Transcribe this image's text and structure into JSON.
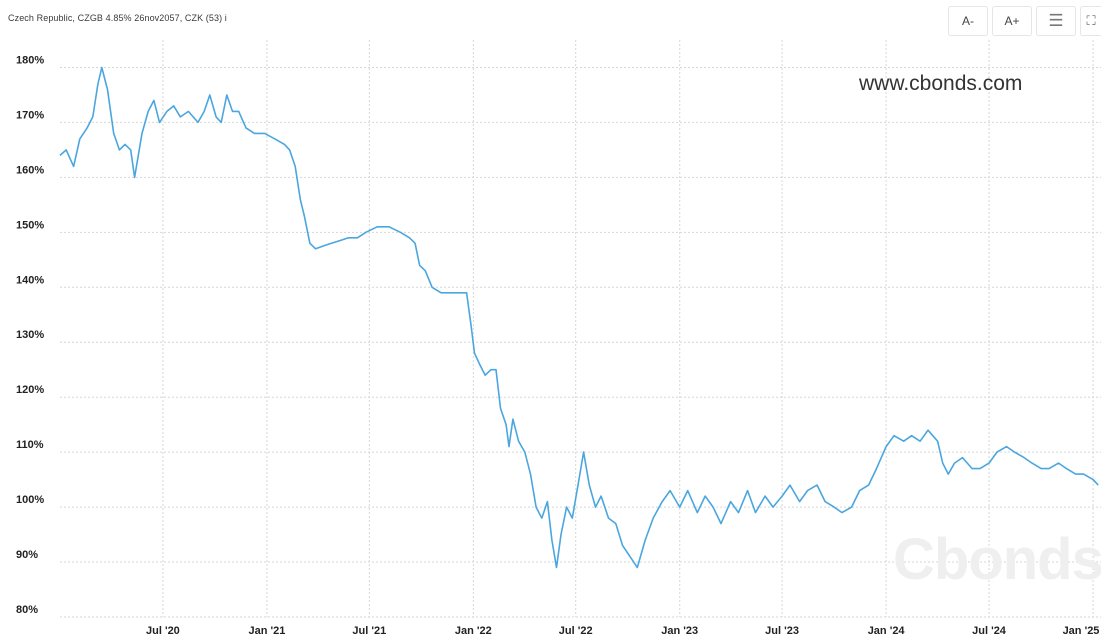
{
  "header": {
    "title": "Czech Republic, CZGB 4.85% 26nov2057, CZK (53) i",
    "toolbar": {
      "decrease_font_label": "A-",
      "increase_font_label": "A+",
      "menu_icon": "hamburger-menu-icon",
      "fullscreen_icon": "fullscreen-icon"
    }
  },
  "watermark": {
    "url_text": "www.cbonds.com",
    "logo_text": "Cbonds"
  },
  "chart_data": {
    "type": "line",
    "title": "Czech Republic, CZGB 4.85% 26nov2057, CZK (53) i",
    "xlabel": "",
    "ylabel": "",
    "ylim": [
      80,
      185
    ],
    "xlim": [
      "2020-01-01",
      "2025-01-15"
    ],
    "yticks": [
      "80%",
      "90%",
      "100%",
      "110%",
      "120%",
      "130%",
      "140%",
      "150%",
      "160%",
      "170%",
      "180%"
    ],
    "xticks": [
      {
        "date": "2020-07-01",
        "label": "Jul '20"
      },
      {
        "date": "2021-01-01",
        "label": "Jan '21"
      },
      {
        "date": "2021-07-01",
        "label": "Jul '21"
      },
      {
        "date": "2022-01-01",
        "label": "Jan '22"
      },
      {
        "date": "2022-07-01",
        "label": "Jul '22"
      },
      {
        "date": "2023-01-01",
        "label": "Jan '23"
      },
      {
        "date": "2023-07-01",
        "label": "Jul '23"
      },
      {
        "date": "2024-01-01",
        "label": "Jan '24"
      },
      {
        "date": "2024-07-01",
        "label": "Jul '24"
      },
      {
        "date": "2025-01-01",
        "label": "Jan '25"
      }
    ],
    "grid": true,
    "line_color": "#4aa6df",
    "series": [
      {
        "points": [
          [
            "2020-01-01",
            164
          ],
          [
            "2020-01-12",
            165
          ],
          [
            "2020-01-25",
            162
          ],
          [
            "2020-02-05",
            167
          ],
          [
            "2020-02-18",
            169
          ],
          [
            "2020-02-28",
            171
          ],
          [
            "2020-03-08",
            177
          ],
          [
            "2020-03-15",
            180
          ],
          [
            "2020-03-25",
            176
          ],
          [
            "2020-04-05",
            168
          ],
          [
            "2020-04-15",
            165
          ],
          [
            "2020-04-25",
            166
          ],
          [
            "2020-05-05",
            165
          ],
          [
            "2020-05-12",
            160
          ],
          [
            "2020-05-25",
            168
          ],
          [
            "2020-06-05",
            172
          ],
          [
            "2020-06-15",
            174
          ],
          [
            "2020-06-25",
            170
          ],
          [
            "2020-07-08",
            172
          ],
          [
            "2020-07-20",
            173
          ],
          [
            "2020-08-01",
            171
          ],
          [
            "2020-08-15",
            172
          ],
          [
            "2020-09-01",
            170
          ],
          [
            "2020-09-12",
            172
          ],
          [
            "2020-09-22",
            175
          ],
          [
            "2020-10-03",
            171
          ],
          [
            "2020-10-12",
            170
          ],
          [
            "2020-10-22",
            175
          ],
          [
            "2020-11-01",
            172
          ],
          [
            "2020-11-12",
            172
          ],
          [
            "2020-11-25",
            169
          ],
          [
            "2020-12-10",
            168
          ],
          [
            "2020-12-28",
            168
          ],
          [
            "2021-01-15",
            167
          ],
          [
            "2021-02-01",
            166
          ],
          [
            "2021-02-10",
            165
          ],
          [
            "2021-02-20",
            162
          ],
          [
            "2021-03-01",
            156
          ],
          [
            "2021-03-08",
            153
          ],
          [
            "2021-03-18",
            148
          ],
          [
            "2021-03-28",
            147
          ],
          [
            "2021-04-10",
            147.5
          ],
          [
            "2021-04-25",
            148
          ],
          [
            "2021-05-10",
            148.5
          ],
          [
            "2021-05-25",
            149
          ],
          [
            "2021-06-10",
            149
          ],
          [
            "2021-06-25",
            150
          ],
          [
            "2021-07-15",
            151
          ],
          [
            "2021-08-05",
            151
          ],
          [
            "2021-08-25",
            150
          ],
          [
            "2021-09-10",
            149
          ],
          [
            "2021-09-20",
            148
          ],
          [
            "2021-09-28",
            144
          ],
          [
            "2021-10-08",
            143
          ],
          [
            "2021-10-20",
            140
          ],
          [
            "2021-11-05",
            139
          ],
          [
            "2021-11-20",
            139
          ],
          [
            "2021-12-05",
            139
          ],
          [
            "2021-12-20",
            139
          ],
          [
            "2021-12-28",
            133
          ],
          [
            "2022-01-03",
            128
          ],
          [
            "2022-01-12",
            126
          ],
          [
            "2022-01-22",
            124
          ],
          [
            "2022-02-01",
            125
          ],
          [
            "2022-02-10",
            125
          ],
          [
            "2022-02-18",
            118
          ],
          [
            "2022-02-28",
            115
          ],
          [
            "2022-03-05",
            111
          ],
          [
            "2022-03-12",
            116
          ],
          [
            "2022-03-22",
            112
          ],
          [
            "2022-04-02",
            110
          ],
          [
            "2022-04-12",
            106
          ],
          [
            "2022-04-22",
            100
          ],
          [
            "2022-05-02",
            98
          ],
          [
            "2022-05-12",
            101
          ],
          [
            "2022-05-20",
            94
          ],
          [
            "2022-05-28",
            89
          ],
          [
            "2022-06-05",
            95
          ],
          [
            "2022-06-15",
            100
          ],
          [
            "2022-06-25",
            98
          ],
          [
            "2022-07-05",
            104
          ],
          [
            "2022-07-15",
            110
          ],
          [
            "2022-07-25",
            104
          ],
          [
            "2022-08-05",
            100
          ],
          [
            "2022-08-15",
            102
          ],
          [
            "2022-08-28",
            98
          ],
          [
            "2022-09-10",
            97
          ],
          [
            "2022-09-22",
            93
          ],
          [
            "2022-10-05",
            91
          ],
          [
            "2022-10-18",
            89
          ],
          [
            "2022-11-01",
            94
          ],
          [
            "2022-11-15",
            98
          ],
          [
            "2022-12-01",
            101
          ],
          [
            "2022-12-15",
            103
          ],
          [
            "2023-01-01",
            100
          ],
          [
            "2023-01-15",
            103
          ],
          [
            "2023-02-01",
            99
          ],
          [
            "2023-02-15",
            102
          ],
          [
            "2023-03-01",
            100
          ],
          [
            "2023-03-15",
            97
          ],
          [
            "2023-04-01",
            101
          ],
          [
            "2023-04-15",
            99
          ],
          [
            "2023-05-01",
            103
          ],
          [
            "2023-05-15",
            99
          ],
          [
            "2023-06-01",
            102
          ],
          [
            "2023-06-15",
            100
          ],
          [
            "2023-07-01",
            102
          ],
          [
            "2023-07-15",
            104
          ],
          [
            "2023-08-01",
            101
          ],
          [
            "2023-08-15",
            103
          ],
          [
            "2023-09-01",
            104
          ],
          [
            "2023-09-15",
            101
          ],
          [
            "2023-10-01",
            100
          ],
          [
            "2023-10-15",
            99
          ],
          [
            "2023-11-01",
            100
          ],
          [
            "2023-11-15",
            103
          ],
          [
            "2023-12-01",
            104
          ],
          [
            "2023-12-15",
            107
          ],
          [
            "2024-01-01",
            111
          ],
          [
            "2024-01-15",
            113
          ],
          [
            "2024-02-01",
            112
          ],
          [
            "2024-02-15",
            113
          ],
          [
            "2024-03-01",
            112
          ],
          [
            "2024-03-15",
            114
          ],
          [
            "2024-04-01",
            112
          ],
          [
            "2024-04-10",
            108
          ],
          [
            "2024-04-20",
            106
          ],
          [
            "2024-05-01",
            108
          ],
          [
            "2024-05-15",
            109
          ],
          [
            "2024-06-01",
            107
          ],
          [
            "2024-06-15",
            107
          ],
          [
            "2024-07-01",
            108
          ],
          [
            "2024-07-15",
            110
          ],
          [
            "2024-08-01",
            111
          ],
          [
            "2024-08-15",
            110
          ],
          [
            "2024-09-01",
            109
          ],
          [
            "2024-09-15",
            108
          ],
          [
            "2024-10-01",
            107
          ],
          [
            "2024-10-15",
            107
          ],
          [
            "2024-11-01",
            108
          ],
          [
            "2024-11-15",
            107
          ],
          [
            "2024-12-01",
            106
          ],
          [
            "2024-12-15",
            106
          ],
          [
            "2025-01-01",
            105
          ],
          [
            "2025-01-10",
            104
          ]
        ]
      }
    ]
  }
}
